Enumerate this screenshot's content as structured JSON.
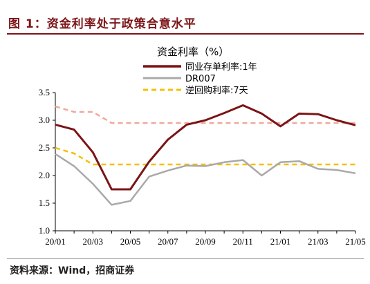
{
  "header": {
    "title": "图 1：资金利率处于政策合意水平"
  },
  "footer": {
    "source": "资料来源：Wind，招商证券"
  },
  "chart_data": {
    "type": "line",
    "title": "资金利率（%）",
    "xlabel": "",
    "ylabel": "",
    "ylim": [
      1.0,
      3.5
    ],
    "yticks": [
      "1.0",
      "1.5",
      "2.0",
      "2.5",
      "3.0",
      "3.5"
    ],
    "xticks": [
      "20/01",
      "20/03",
      "20/05",
      "20/07",
      "20/09",
      "20/11",
      "21/01",
      "21/03",
      "21/05"
    ],
    "grid": false,
    "legend_position": "top",
    "x": [
      "20/01",
      "20/02",
      "20/03",
      "20/04",
      "20/05",
      "20/06",
      "20/07",
      "20/08",
      "20/09",
      "20/10",
      "20/11",
      "20/12",
      "21/01",
      "21/02",
      "21/03",
      "21/04",
      "21/05"
    ],
    "series": [
      {
        "name": "同业存单利率:1年",
        "color": "#7b1416",
        "style": "solid",
        "values": [
          2.92,
          2.83,
          2.42,
          1.75,
          1.75,
          2.25,
          2.65,
          2.92,
          3.0,
          3.13,
          3.27,
          3.12,
          2.89,
          3.12,
          3.11,
          3.0,
          2.91
        ]
      },
      {
        "name": "DR007",
        "color": "#a9a9a9",
        "style": "solid",
        "values": [
          2.39,
          2.17,
          1.85,
          1.47,
          1.54,
          1.98,
          2.09,
          2.18,
          2.17,
          2.24,
          2.28,
          2.0,
          2.24,
          2.26,
          2.12,
          2.1,
          2.04
        ]
      },
      {
        "name": "逆回购利率:7天",
        "color": "#f5c000",
        "style": "dashed",
        "values": [
          2.5,
          2.4,
          2.2,
          2.2,
          2.2,
          2.2,
          2.2,
          2.2,
          2.2,
          2.2,
          2.2,
          2.2,
          2.2,
          2.2,
          2.2,
          2.2,
          2.2
        ]
      },
      {
        "name": "",
        "color": "#f0a89a",
        "style": "dashed",
        "values": [
          3.25,
          3.15,
          3.15,
          2.95,
          2.95,
          2.95,
          2.95,
          2.95,
          2.95,
          2.95,
          2.95,
          2.95,
          2.95,
          2.95,
          2.95,
          2.95,
          2.95
        ]
      }
    ]
  }
}
